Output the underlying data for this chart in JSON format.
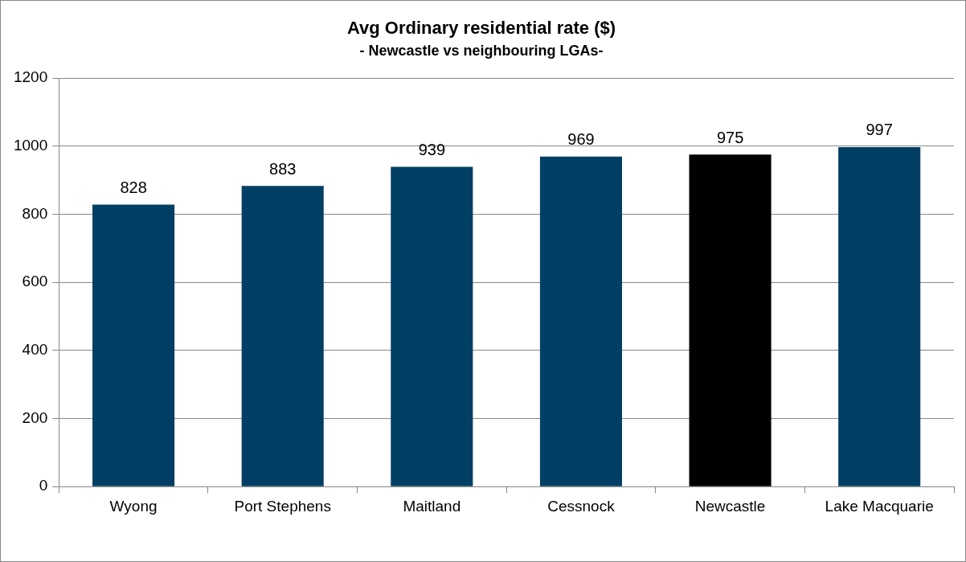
{
  "chart_data": {
    "type": "bar",
    "title": "Avg Ordinary residential rate ($)",
    "subtitle": "- Newcastle vs neighbouring LGAs-",
    "categories": [
      "Wyong",
      "Port Stephens",
      "Maitland",
      "Cessnock",
      "Newcastle",
      "Lake Macquarie"
    ],
    "values": [
      828,
      883,
      939,
      969,
      975,
      997
    ],
    "colors": [
      "#003f63",
      "#003f63",
      "#003f63",
      "#003f63",
      "#000000",
      "#003f63"
    ],
    "ylim": [
      0,
      1200
    ],
    "yticks": [
      0,
      200,
      400,
      600,
      800,
      1000,
      1200
    ],
    "grid": "y",
    "legend": false,
    "data_labels": true
  }
}
